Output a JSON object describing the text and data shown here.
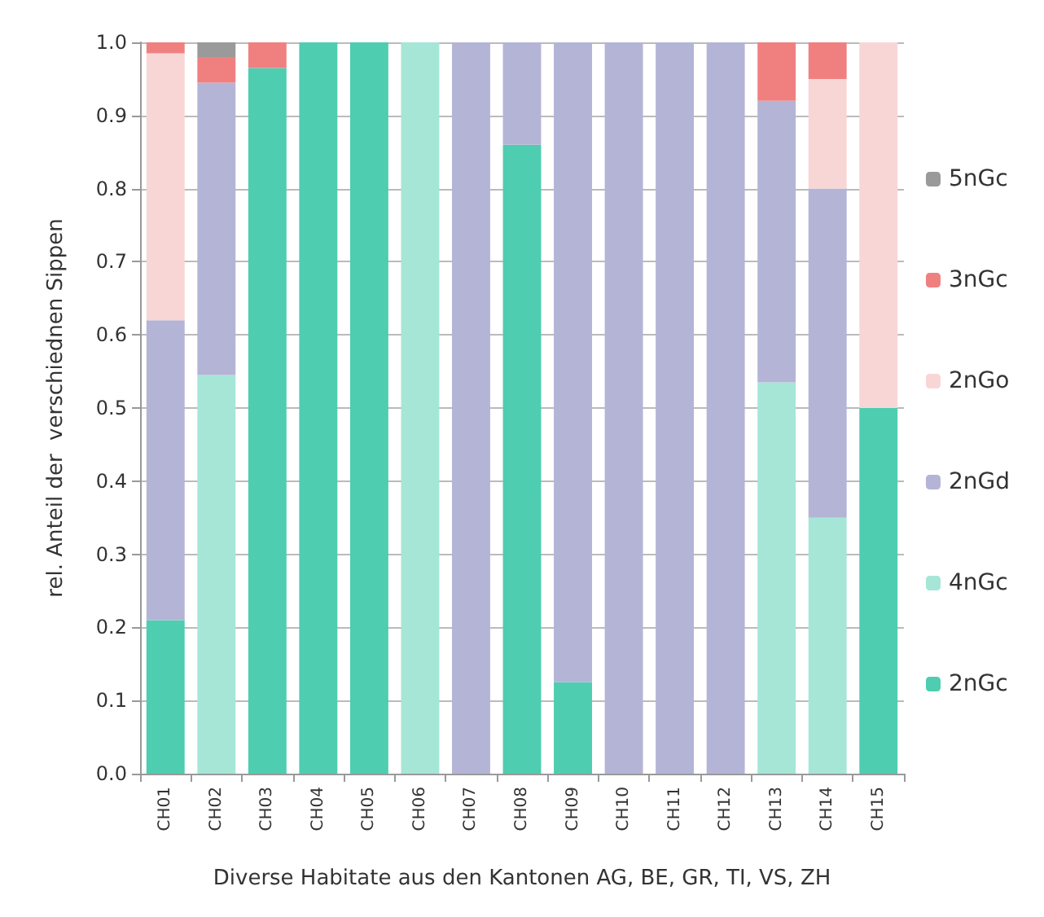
{
  "chart_data": {
    "type": "bar",
    "stacked": true,
    "xlabel": "Diverse Habitate aus den Kantonen AG, BE, GR, TI, VS, ZH",
    "ylabel": "rel. Anteil der  verschiednen Sippen",
    "categories": [
      "CH01",
      "CH02",
      "CH03",
      "CH04",
      "CH05",
      "CH06",
      "CH07",
      "CH08",
      "CH09",
      "CH10",
      "CH11",
      "CH12",
      "CH13",
      "CH14",
      "CH15"
    ],
    "series": [
      {
        "name": "2nGc",
        "color": "#4ecdb0",
        "values": [
          0.21,
          0,
          0.965,
          1,
          1,
          0,
          0,
          0.86,
          0.125,
          0,
          0,
          0,
          0,
          0,
          0.5
        ]
      },
      {
        "name": "4nGc",
        "color": "#a6e6d6",
        "values": [
          0,
          0.545,
          0,
          0,
          0,
          1,
          0,
          0,
          0,
          0,
          0,
          0,
          0.535,
          0.35,
          0
        ]
      },
      {
        "name": "2nGd",
        "color": "#b4b4d6",
        "values": [
          0.41,
          0.4,
          0,
          0,
          0,
          0,
          1,
          0.14,
          0.875,
          1,
          1,
          1,
          0.385,
          0.45,
          0
        ]
      },
      {
        "name": "2nGo",
        "color": "#f9d6d6",
        "values": [
          0.365,
          0,
          0,
          0,
          0,
          0,
          0,
          0,
          0,
          0,
          0,
          0,
          0,
          0.15,
          0.5
        ]
      },
      {
        "name": "3nGc",
        "color": "#f08080",
        "values": [
          0.015,
          0.035,
          0.035,
          0,
          0,
          0,
          0,
          0,
          0,
          0,
          0,
          0,
          0.08,
          0.05,
          0
        ]
      },
      {
        "name": "5nGc",
        "color": "#9a9a9a",
        "values": [
          0,
          0.02,
          0,
          0,
          0,
          0,
          0,
          0,
          0,
          0,
          0,
          0,
          0,
          0,
          0
        ]
      }
    ],
    "ylim": [
      0,
      1
    ],
    "yticks": [
      {
        "value": 0,
        "label": "0.0"
      },
      {
        "value": 0.1,
        "label": "0.1"
      },
      {
        "value": 0.2,
        "label": "0.2"
      },
      {
        "value": 0.3,
        "label": "0.3"
      },
      {
        "value": 0.4,
        "label": "0.4"
      },
      {
        "value": 0.5,
        "label": "0.5"
      },
      {
        "value": 0.6,
        "label": "0.6"
      },
      {
        "value": 0.7,
        "label": "0.7"
      },
      {
        "value": 0.8,
        "label": "0.8"
      },
      {
        "value": 0.9,
        "label": "0.9"
      },
      {
        "value": 1,
        "label": "1.0"
      }
    ],
    "grid": "y",
    "legend": "right"
  }
}
